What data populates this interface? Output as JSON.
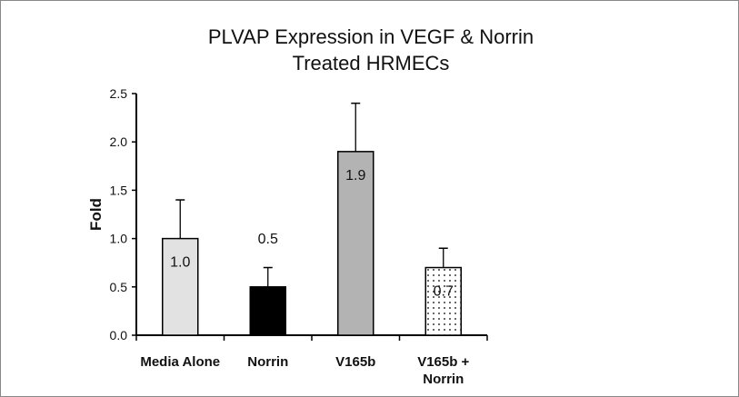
{
  "chart_data": {
    "type": "bar",
    "title_lines": [
      "PLVAP Expression in VEGF & Norrin",
      "Treated HRMECs"
    ],
    "xlabel": "",
    "ylabel": "Fold",
    "ylim": [
      0,
      2.5
    ],
    "yticks": [
      "0.0",
      "0.5",
      "1.0",
      "1.5",
      "2.0",
      "2.5"
    ],
    "categories": [
      [
        "Media Alone"
      ],
      [
        "Norrin"
      ],
      [
        "V165b"
      ],
      [
        "V165b +",
        "Norrin"
      ]
    ],
    "values": [
      1.0,
      0.5,
      1.9,
      0.7
    ],
    "error_upper": [
      0.4,
      0.2,
      0.5,
      0.2
    ],
    "data_labels": [
      "1.0",
      "0.5",
      "1.9",
      "0.7"
    ],
    "bar_fills": [
      "#e2e2e2",
      "#000000",
      "#b3b3b3",
      "dotted"
    ],
    "grid": false,
    "legend": "none"
  }
}
